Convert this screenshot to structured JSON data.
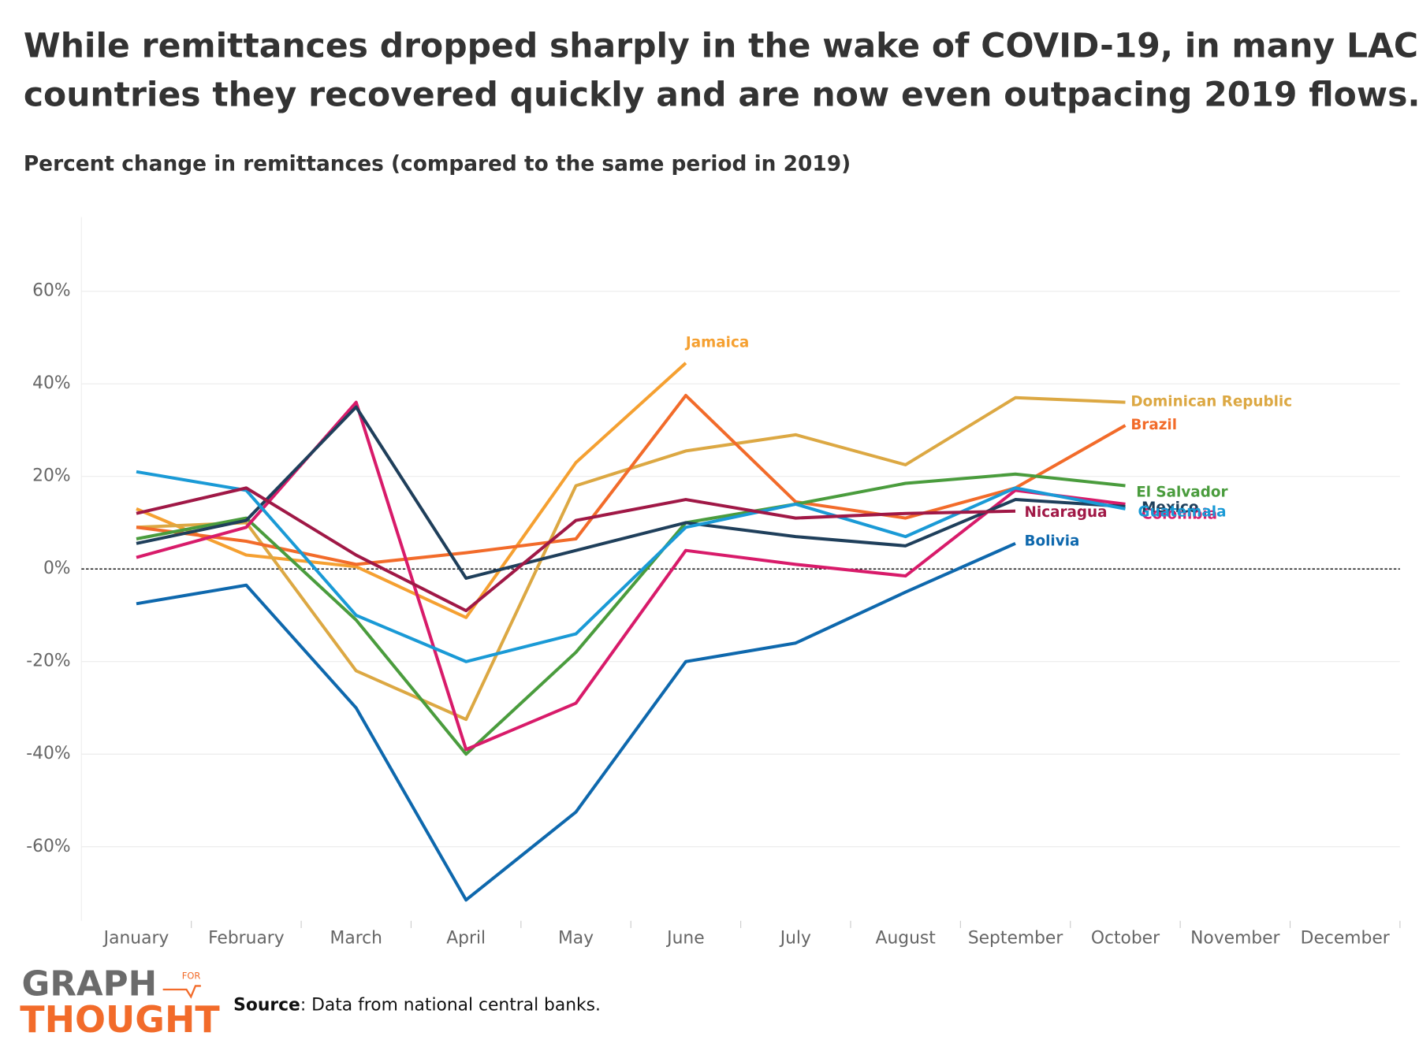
{
  "chart_data": {
    "type": "line",
    "title": [
      "While remittances dropped sharply in the wake of COVID-19, in many LAC",
      "countries they recovered quickly and are now even outpacing 2019 flows."
    ],
    "subtitle": "Percent change in remittances (compared to the same period in 2019)",
    "categories": [
      "January",
      "February",
      "March",
      "April",
      "May",
      "June",
      "July",
      "August",
      "September",
      "October",
      "November",
      "December"
    ],
    "ylim": [
      -76,
      76
    ],
    "yticks": [
      {
        "value": -60,
        "label": "-60%"
      },
      {
        "value": -40,
        "label": "-40%"
      },
      {
        "value": -20,
        "label": "-20%"
      },
      {
        "value": 0,
        "label": "0%"
      },
      {
        "value": 20,
        "label": "20%"
      },
      {
        "value": 40,
        "label": "40%"
      },
      {
        "value": 60,
        "label": "60%"
      }
    ],
    "grid": true,
    "series": [
      {
        "name": "Jamaica",
        "color": "#f5a031",
        "values": [
          13,
          3,
          0.5,
          -10.5,
          23,
          44.5,
          null,
          null,
          null,
          null,
          null,
          null
        ]
      },
      {
        "name": "Dominican Republic",
        "color": "#dca843",
        "values": [
          9,
          10,
          -22,
          -32.5,
          18,
          25.5,
          29,
          22.5,
          37,
          36,
          null,
          null
        ]
      },
      {
        "name": "Brazil",
        "color": "#f26b2a",
        "values": [
          9,
          6,
          1,
          3.5,
          6.5,
          37.5,
          14.5,
          11,
          17.5,
          31,
          null,
          null
        ]
      },
      {
        "name": "El Salvador",
        "color": "#4a9c3d",
        "values": [
          6.5,
          11,
          -11,
          -40,
          -18,
          10,
          14,
          18.5,
          20.5,
          18,
          null,
          null
        ]
      },
      {
        "name": "Colombia",
        "color": "#d81b6a",
        "values": [
          2.5,
          9,
          36,
          -39,
          -29,
          4,
          1,
          -1.5,
          17,
          14,
          null,
          null
        ]
      },
      {
        "name": "Mexico",
        "color": "#1f3f5b",
        "values": [
          5.5,
          10.5,
          35,
          -2,
          4,
          10,
          7,
          5,
          15,
          13.5,
          null,
          null
        ]
      },
      {
        "name": "Guatemala",
        "color": "#1a9ad6",
        "values": [
          21,
          17,
          -10,
          -20,
          -14,
          9,
          14,
          7,
          17.5,
          13,
          null,
          null
        ]
      },
      {
        "name": "Nicaragua",
        "color": "#a01846",
        "values": [
          12,
          17.5,
          3,
          -9,
          10.5,
          15,
          11,
          12,
          12.5,
          null,
          null,
          null
        ]
      },
      {
        "name": "Bolivia",
        "color": "#0e68ad",
        "values": [
          -7.5,
          -3.5,
          -30,
          -71.5,
          -52.5,
          -20,
          -16,
          -5,
          5.5,
          null,
          null,
          null
        ]
      }
    ],
    "source": {
      "label": "Source",
      "text": ": Data from national central banks."
    },
    "logo": {
      "top": "GRAPH",
      "small": "FOR",
      "bottom": "THOUGHT"
    }
  }
}
